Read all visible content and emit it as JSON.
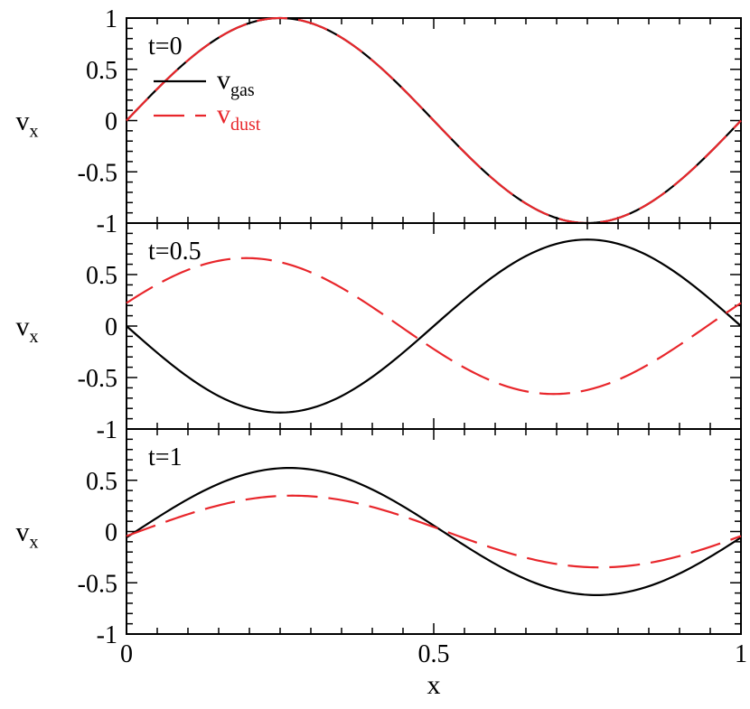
{
  "chart_data": {
    "type": "line",
    "xlabel": "x",
    "ylabel": "v",
    "ylabel_sub": "x",
    "xlim": [
      0,
      1
    ],
    "xticks": [
      "0",
      "0.5",
      "1"
    ],
    "legend": {
      "placement": "top-left of first panel",
      "entries": [
        {
          "base": "v",
          "sub": "gas",
          "color": "#000000",
          "dashed": false
        },
        {
          "base": "v",
          "sub": "dust",
          "color": "#e8262b",
          "dashed": true
        }
      ]
    },
    "panels": [
      {
        "label": "t=0",
        "ylim": [
          -1,
          1
        ],
        "yticks": [
          "1",
          "0.5",
          "0",
          "-0.5",
          "-1"
        ],
        "series": [
          {
            "amp": 1.0,
            "phase": 0.0,
            "color": "#000000",
            "dashed": false
          },
          {
            "amp": 1.0,
            "phase": 0.0,
            "color": "#e8262b",
            "dashed": true
          }
        ]
      },
      {
        "label": "t=0.5",
        "ylim": [
          -1,
          1
        ],
        "yticks": [
          "0.5",
          "0",
          "-0.5",
          "-1"
        ],
        "series": [
          {
            "amp": -0.84,
            "phase": 0.0,
            "color": "#000000",
            "dashed": false
          },
          {
            "amp": 0.66,
            "phase": -0.055,
            "color": "#e8262b",
            "dashed": true
          }
        ]
      },
      {
        "label": "t=1",
        "ylim": [
          -1,
          1
        ],
        "yticks": [
          "0.5",
          "0",
          "-0.5",
          "-1"
        ],
        "series": [
          {
            "amp": 0.62,
            "phase": 0.015,
            "color": "#000000",
            "dashed": false
          },
          {
            "amp": 0.35,
            "phase": 0.02,
            "color": "#e8262b",
            "dashed": true
          }
        ]
      }
    ]
  }
}
